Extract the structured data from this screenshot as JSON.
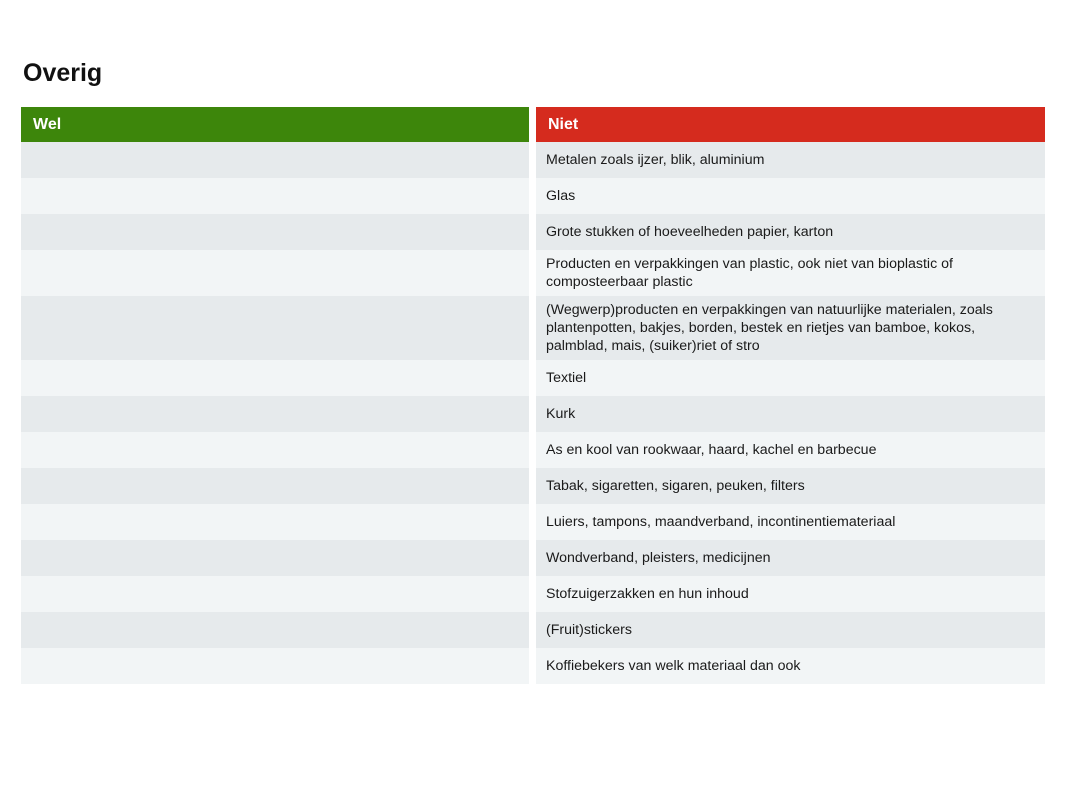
{
  "section": {
    "title": "Overig"
  },
  "table": {
    "headers": {
      "wel": "Wel",
      "niet": "Niet"
    },
    "colors": {
      "wel_header": "#3d860b",
      "niet_header": "#d52b1e"
    },
    "rows": [
      {
        "wel": "",
        "niet": "Metalen zoals ijzer, blik, aluminium"
      },
      {
        "wel": "",
        "niet": "Glas"
      },
      {
        "wel": "",
        "niet": "Grote stukken of hoeveelheden papier, karton"
      },
      {
        "wel": "",
        "niet": "Producten en verpakkingen van plastic, ook niet van bioplastic of composteerbaar plastic"
      },
      {
        "wel": "",
        "niet": "(Wegwerp)producten en verpakkingen van natuurlijke materialen, zoals plantenpotten, bakjes, borden, bestek en rietjes van bamboe, kokos, palmblad, mais, (suiker)riet of stro"
      },
      {
        "wel": "",
        "niet": "Textiel"
      },
      {
        "wel": "",
        "niet": "Kurk"
      },
      {
        "wel": "",
        "niet": "As en kool van rookwaar, haard, kachel en barbecue"
      },
      {
        "wel": "",
        "niet": "Tabak, sigaretten, sigaren, peuken, filters"
      },
      {
        "wel": "",
        "niet": "Luiers, tampons, maandverband, incontinentiemateriaal"
      },
      {
        "wel": "",
        "niet": "Wondverband, pleisters, medicijnen"
      },
      {
        "wel": "",
        "niet": "Stofzuigerzakken en hun inhoud"
      },
      {
        "wel": "",
        "niet": "(Fruit)stickers"
      },
      {
        "wel": "",
        "niet": "Koffiebekers van welk materiaal dan ook"
      }
    ]
  }
}
